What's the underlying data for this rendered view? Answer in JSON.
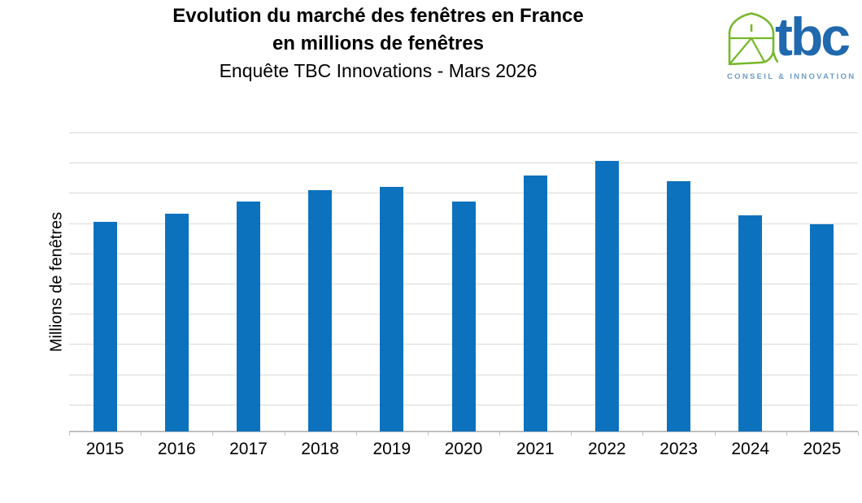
{
  "header": {
    "title_line1": "Evolution du marché des fenêtres en France",
    "title_line2": "en millions de fenêtres",
    "subtitle": "Enquête TBC Innovations - Mars 2026"
  },
  "logo": {
    "text": "tbc",
    "tagline": "CONSEIL & INNOVATION",
    "icon": "tbc-house-leaf-icon",
    "colors": {
      "green": "#76B82A",
      "blue": "#2069AE",
      "tagline_blue": "#6D9CC6"
    }
  },
  "chart_data": {
    "type": "bar",
    "title": "Evolution du marché des fenêtres en France en millions de fenêtres",
    "subtitle": "Enquête TBC Innovations - Mars 2026",
    "categories": [
      "2015",
      "2016",
      "2017",
      "2018",
      "2019",
      "2020",
      "2021",
      "2022",
      "2023",
      "2024",
      "2025"
    ],
    "values": [
      3.47,
      3.6,
      3.81,
      3.99,
      4.05,
      3.81,
      4.23,
      4.47,
      4.14,
      3.58,
      3.43
    ],
    "xlabel": "",
    "ylabel": "Millions de fenêtres",
    "ylim": [
      0,
      4.94
    ],
    "gridline_interval": 0.5,
    "grid": true,
    "legend_position": "none",
    "y_tick_labels_visible": false,
    "bar_color": "#0D72BE",
    "gridline_color": "#D9D9D9",
    "axis_color": "#BFBFBF"
  }
}
